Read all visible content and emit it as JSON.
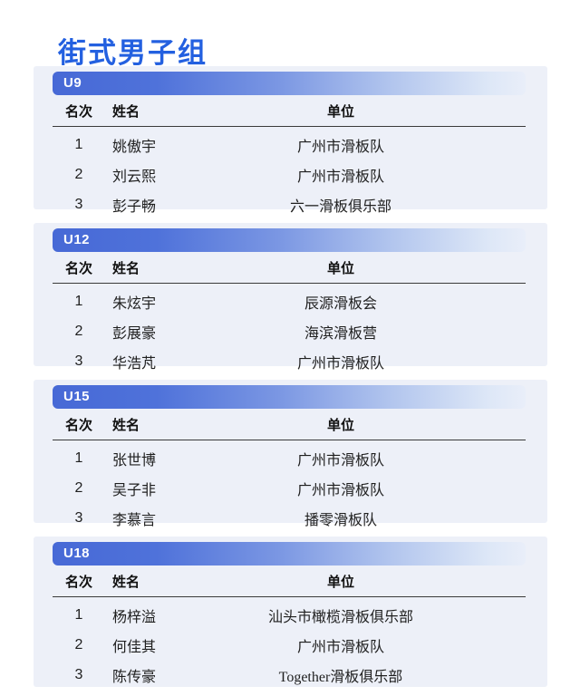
{
  "page": {
    "title": "街式男子组"
  },
  "colors": {
    "title_blue": "#2360e0",
    "bar_blue": "#4769d6",
    "bar_fade": "#e9eef9",
    "card_background": "#edf0f8"
  },
  "columns": {
    "rank": "名次",
    "name": "姓名",
    "unit": "单位"
  },
  "groups": [
    {
      "label": "U9",
      "rows": [
        {
          "rank": "1",
          "name": "姚傲宇",
          "unit": "广州市滑板队"
        },
        {
          "rank": "2",
          "name": "刘云熙",
          "unit": "广州市滑板队"
        },
        {
          "rank": "3",
          "name": "彭子畅",
          "unit": "六一滑板俱乐部"
        }
      ]
    },
    {
      "label": "U12",
      "rows": [
        {
          "rank": "1",
          "name": "朱炫宇",
          "unit": "辰源滑板会"
        },
        {
          "rank": "2",
          "name": "彭展豪",
          "unit": "海滨滑板营"
        },
        {
          "rank": "3",
          "name": "华浩芃",
          "unit": "广州市滑板队"
        }
      ]
    },
    {
      "label": "U15",
      "rows": [
        {
          "rank": "1",
          "name": "张世博",
          "unit": "广州市滑板队"
        },
        {
          "rank": "2",
          "name": "吴子非",
          "unit": "广州市滑板队"
        },
        {
          "rank": "3",
          "name": "李慕言",
          "unit": "播零滑板队"
        }
      ]
    },
    {
      "label": "U18",
      "rows": [
        {
          "rank": "1",
          "name": "杨梓溢",
          "unit": "汕头市橄榄滑板俱乐部"
        },
        {
          "rank": "2",
          "name": "何佳其",
          "unit": "广州市滑板队"
        },
        {
          "rank": "3",
          "name": "陈传豪",
          "unit": "Together滑板俱乐部"
        }
      ]
    }
  ]
}
